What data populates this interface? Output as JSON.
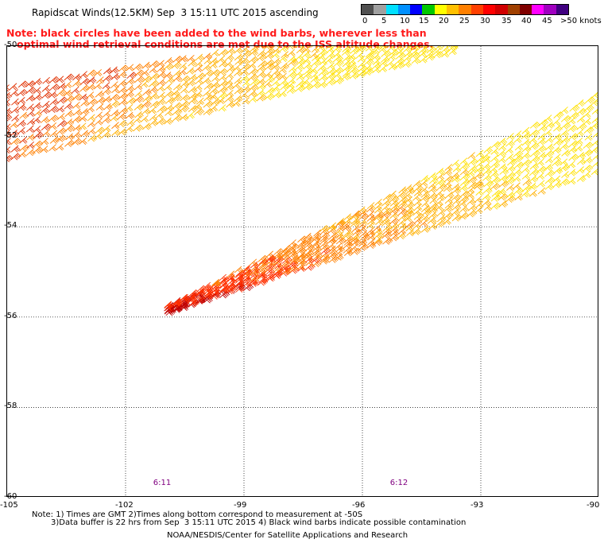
{
  "header": {
    "title": "Rapidscat Winds(12.5KM) Sep  3 15:11 UTC 2015 ascending",
    "note_line1": "Note: black circles have been added to the wind barbs, wherever less than",
    "note_line2": "   optimal wind retrieval conditions are met due to the ISS altitude changes."
  },
  "legend": {
    "labels": [
      "0",
      "5",
      "10",
      "15",
      "20",
      "25",
      "30",
      "35",
      "40",
      "45",
      ">50 knots"
    ],
    "colors": [
      "#505050",
      "#a0a0a0",
      "#00e0ff",
      "#0090ff",
      "#0000ff",
      "#00c800",
      "#ffff00",
      "#ffc000",
      "#ff8000",
      "#ff4000",
      "#ff0000",
      "#d00000",
      "#a04000",
      "#800000",
      "#ff00ff",
      "#a000c0",
      "#400080"
    ]
  },
  "map": {
    "lat_labels": [
      "-50",
      "-52",
      "-54",
      "-56",
      "-58",
      "-60"
    ],
    "lon_labels": [
      "-105",
      "-102",
      "-99",
      "-96",
      "-93",
      "-90"
    ],
    "lat_range": [
      -60,
      -50
    ],
    "lon_range": [
      -105,
      -90
    ],
    "grid": "dotted",
    "time_labels": [
      "6:11",
      "6:12"
    ],
    "time_label_lons": [
      -101.3,
      -95.3
    ],
    "swaths": [
      {
        "from": [
          -105,
          -51.2
        ],
        "to": [
          -95,
          -50
        ],
        "colors": [
          "#ffd000",
          "#ff8000",
          "#e02000"
        ]
      },
      {
        "from": [
          -101,
          -56
        ],
        "to": [
          -90,
          -52
        ],
        "colors": [
          "#ff9000",
          "#ffe000",
          "#ffd000"
        ]
      }
    ]
  },
  "footer": {
    "line1": "Note: 1) Times are GMT 2)Times along bottom correspond to measurement at -50S",
    "line2": "3)Data buffer is 22 hrs from Sep  3 15:11 UTC 2015 4) Black wind barbs indicate possible contamination",
    "line3": "NOAA/NESDIS/Center for Satellite Applications and Research"
  }
}
